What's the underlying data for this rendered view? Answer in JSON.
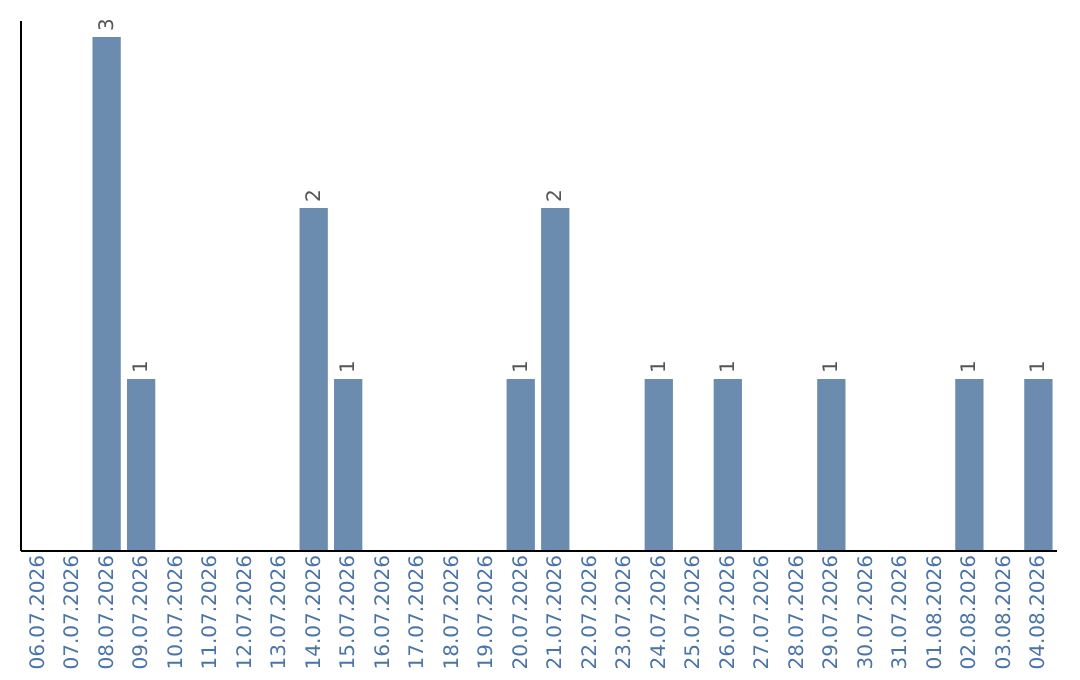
{
  "chart_data": {
    "type": "bar",
    "categories": [
      "06.07.2026",
      "07.07.2026",
      "08.07.2026",
      "09.07.2026",
      "10.07.2026",
      "11.07.2026",
      "12.07.2026",
      "13.07.2026",
      "14.07.2026",
      "15.07.2026",
      "16.07.2026",
      "17.07.2026",
      "18.07.2026",
      "19.07.2026",
      "20.07.2026",
      "21.07.2026",
      "22.07.2026",
      "23.07.2026",
      "24.07.2026",
      "25.07.2026",
      "26.07.2026",
      "27.07.2026",
      "28.07.2026",
      "29.07.2026",
      "30.07.2026",
      "31.07.2026",
      "01.08.2026",
      "02.08.2026",
      "03.08.2026",
      "04.08.2026"
    ],
    "values": [
      0,
      0,
      3,
      1,
      0,
      0,
      0,
      0,
      2,
      1,
      0,
      0,
      0,
      0,
      1,
      2,
      0,
      0,
      1,
      0,
      1,
      0,
      0,
      1,
      0,
      0,
      0,
      1,
      0,
      1
    ],
    "value_labels": [
      null,
      null,
      "3",
      "1",
      null,
      null,
      null,
      null,
      "2",
      "1",
      null,
      null,
      null,
      null,
      "1",
      "2",
      null,
      null,
      "1",
      null,
      "1",
      null,
      null,
      "1",
      null,
      null,
      null,
      "1",
      null,
      "1"
    ],
    "color": "#6b8cae",
    "ylim": [
      0,
      3.1
    ],
    "tick_labels": "x",
    "grid": false
  }
}
